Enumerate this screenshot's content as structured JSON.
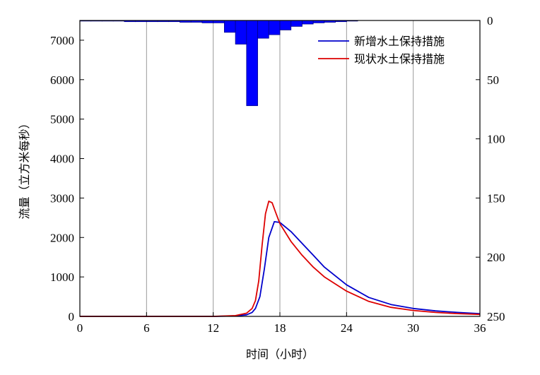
{
  "chart_data": {
    "type": "line",
    "xlabel": "时间（小时）",
    "ylabel": "流量（立方米每秒）",
    "xlim": [
      0,
      36
    ],
    "xticks": [
      0,
      6,
      12,
      18,
      24,
      30,
      36
    ],
    "ylim": [
      0,
      7500
    ],
    "yticks": [
      0,
      1000,
      2000,
      3000,
      4000,
      5000,
      6000,
      7000
    ],
    "y2lim_inverted": [
      0,
      250
    ],
    "y2ticks": [
      0,
      50,
      100,
      150,
      200,
      250
    ],
    "grid": true,
    "legend_position": "top-right",
    "series": [
      {
        "name": "新增水土保持措施",
        "color": "#0000cc",
        "x": [
          0,
          12,
          14,
          15,
          15.5,
          15.8,
          16.2,
          16.6,
          17,
          17.5,
          18,
          19,
          20,
          21,
          22,
          24,
          26,
          28,
          30,
          32,
          34,
          36
        ],
        "y": [
          0,
          0,
          10,
          40,
          100,
          200,
          500,
          1200,
          2000,
          2400,
          2380,
          2150,
          1850,
          1550,
          1250,
          800,
          480,
          300,
          200,
          140,
          100,
          70
        ]
      },
      {
        "name": "现状水土保持措施",
        "color": "#dd0000",
        "x": [
          0,
          12,
          14,
          15,
          15.5,
          15.8,
          16.1,
          16.4,
          16.7,
          17,
          17.3,
          17.6,
          18,
          19,
          20,
          21,
          22,
          24,
          26,
          28,
          30,
          32,
          34,
          36
        ],
        "y": [
          0,
          0,
          20,
          80,
          200,
          400,
          900,
          1800,
          2600,
          2920,
          2880,
          2650,
          2350,
          1900,
          1550,
          1250,
          1000,
          640,
          380,
          230,
          150,
          100,
          70,
          50
        ]
      }
    ],
    "rainfall": {
      "color": "#0000ff",
      "x_start": [
        0,
        1,
        2,
        3,
        4,
        5,
        6,
        7,
        8,
        9,
        10,
        11,
        12,
        13,
        14,
        15,
        16,
        17,
        18,
        19,
        20,
        21,
        22,
        23,
        24
      ],
      "values": [
        0.5,
        0.5,
        0.5,
        0.5,
        1,
        1,
        1,
        1,
        1,
        1.5,
        1.5,
        2,
        2,
        10,
        20,
        72,
        15,
        12,
        8,
        5,
        3,
        2,
        1.5,
        1,
        0.5
      ]
    }
  }
}
